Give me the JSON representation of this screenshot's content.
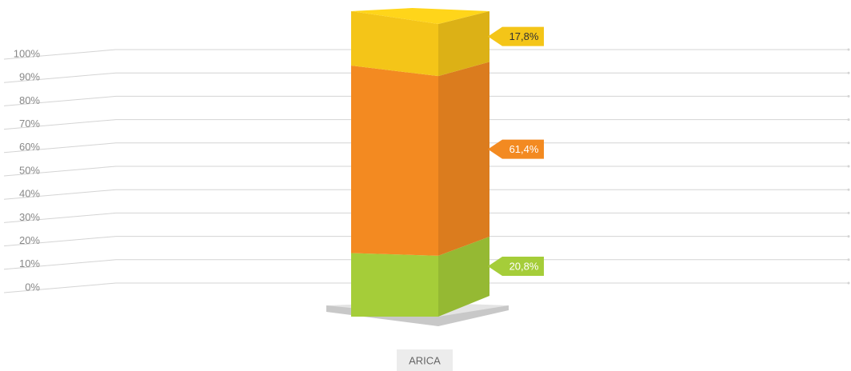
{
  "chart_data": {
    "type": "stacked_bar_3d",
    "categories": [
      "ARICA"
    ],
    "series": [
      {
        "color": "#a5cd39",
        "values": [
          20.8
        ],
        "value_labels": [
          "20,8%"
        ]
      },
      {
        "color": "#f38a21",
        "values": [
          61.4
        ],
        "value_labels": [
          "61,4%"
        ]
      },
      {
        "color": "#f4c518",
        "values": [
          17.8
        ],
        "value_labels": [
          "17,8%"
        ]
      }
    ],
    "ylim": [
      0,
      100
    ],
    "yticks": [
      {
        "value": 0,
        "label": "0%"
      },
      {
        "value": 10,
        "label": "10%"
      },
      {
        "value": 20,
        "label": "20%"
      },
      {
        "value": 30,
        "label": "30%"
      },
      {
        "value": 40,
        "label": "40%"
      },
      {
        "value": 50,
        "label": "50%"
      },
      {
        "value": 60,
        "label": "60%"
      },
      {
        "value": 70,
        "label": "70%"
      },
      {
        "value": 80,
        "label": "80%"
      },
      {
        "value": 90,
        "label": "90%"
      },
      {
        "value": 100,
        "label": "100%"
      }
    ],
    "grid": true
  }
}
